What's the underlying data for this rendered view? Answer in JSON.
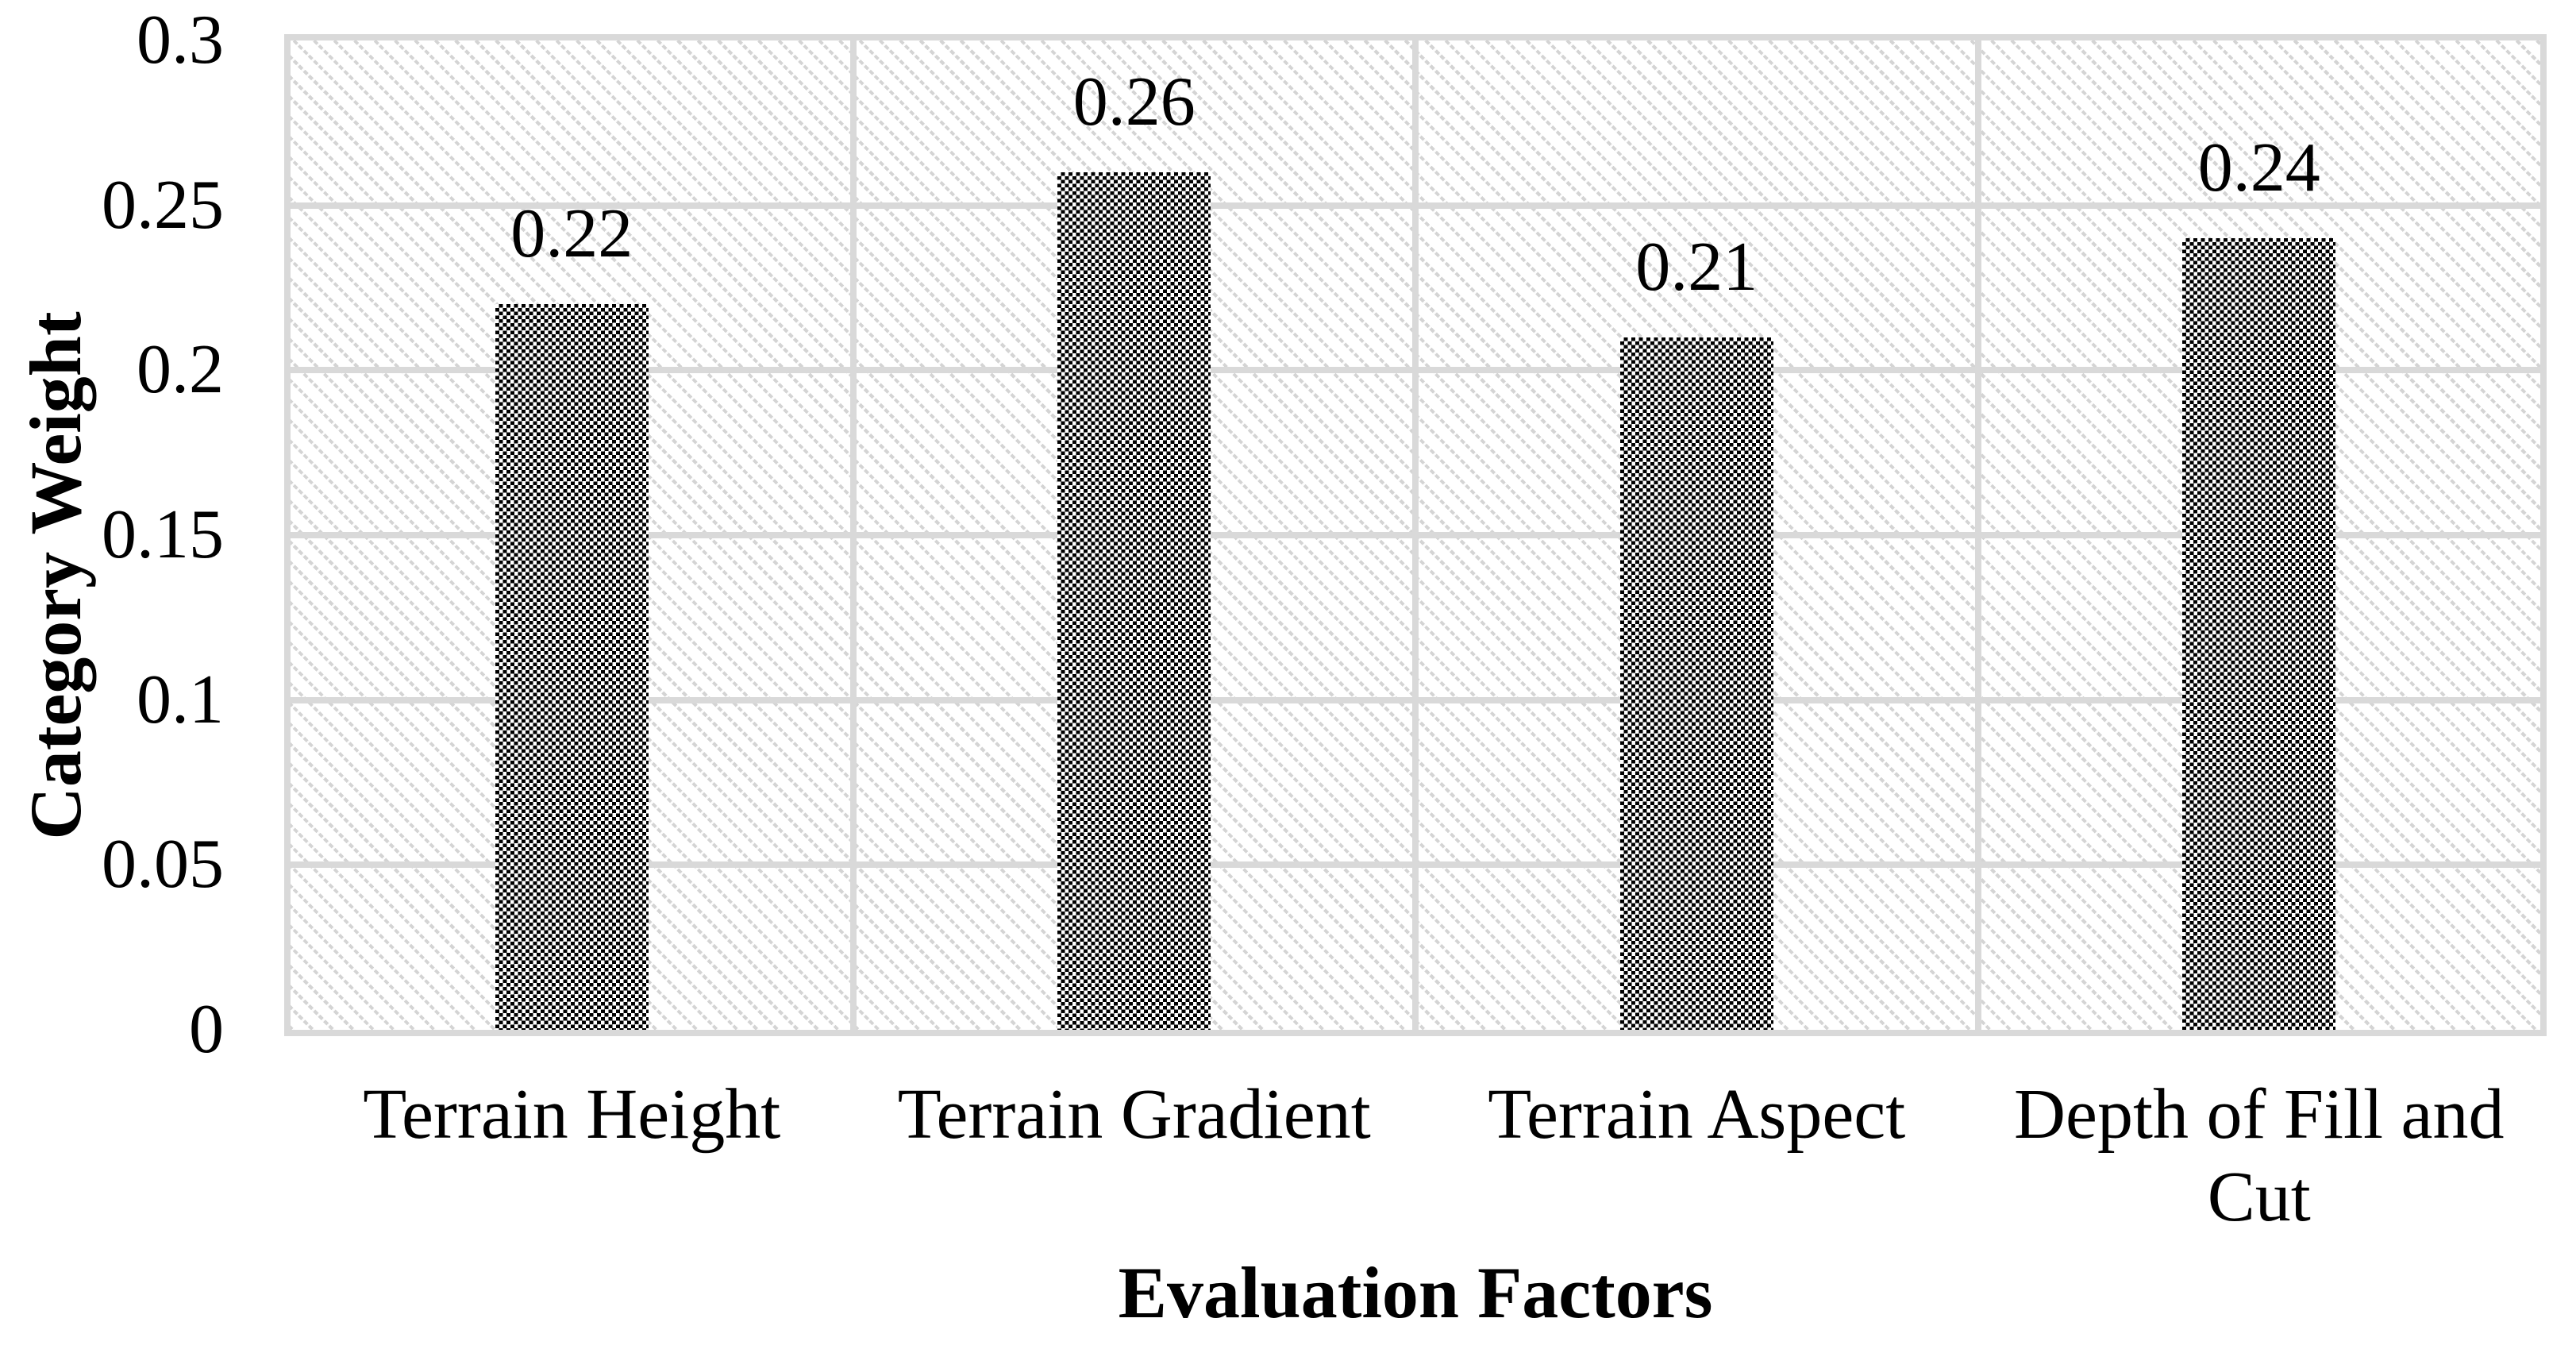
{
  "chart_data": {
    "type": "bar",
    "title": "",
    "categories": [
      "Terrain Height",
      "Terrain Gradient",
      "Terrain Aspect",
      "Depth of Fill and Cut"
    ],
    "values": [
      0.22,
      0.26,
      0.21,
      0.24
    ],
    "data_labels": [
      "0.22",
      "0.26",
      "0.21",
      "0.24"
    ],
    "xlabel": "Evaluation Factors",
    "ylabel": "Category Weight",
    "ylim": [
      0,
      0.3
    ],
    "yticks": [
      {
        "value": 0,
        "label": "0"
      },
      {
        "value": 0.05,
        "label": "0.05"
      },
      {
        "value": 0.1,
        "label": "0.1"
      },
      {
        "value": 0.15,
        "label": "0.15"
      },
      {
        "value": 0.2,
        "label": "0.2"
      },
      {
        "value": 0.25,
        "label": "0.25"
      },
      {
        "value": 0.3,
        "label": "0.3"
      }
    ],
    "legend": "none",
    "grid": {
      "horizontal": true,
      "vertical_category_separators": true
    },
    "styles": {
      "bar_fill": "black-and-white checkerboard pattern",
      "plot_background": "light gray downward diagonal hatch",
      "colors": {
        "grid": "#d9d9d9",
        "hatch": "#d4d4d4",
        "text": "#000000",
        "bar_dark": "#000000",
        "background": "#ffffff"
      }
    }
  }
}
